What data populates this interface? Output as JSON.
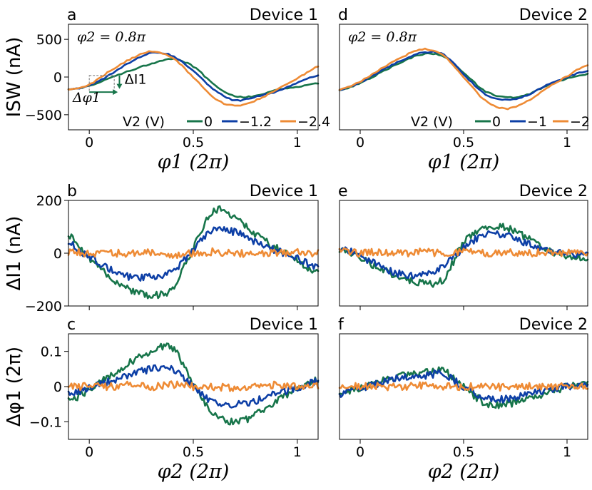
{
  "colors": {
    "green": "#17754a",
    "blue": "#0d3fa6",
    "orange": "#ee8b35"
  },
  "chart_data": [
    {
      "id": "a",
      "panel_letter": "a",
      "device_label": "Device 1",
      "type": "line",
      "xlim": [
        -0.1,
        1.1
      ],
      "ylim": [
        -700,
        700
      ],
      "xticks": [
        0,
        0.5,
        1
      ],
      "xtick_labels": [
        "0",
        "0.5",
        "1"
      ],
      "yticks": [
        500,
        0,
        -500
      ],
      "ytick_labels": [
        "500",
        "0",
        "−500"
      ],
      "xlabel": "φ1 (2π)",
      "ylabel": "ISW (nA)",
      "annotation": "φ2 = 0.8π",
      "marker_labels": {
        "dphi": "Δφ1",
        "dI": "ΔI1"
      },
      "legend_title": "V2 (V)",
      "series": [
        {
          "name": "0",
          "color": "green",
          "x": [
            -0.1,
            0,
            0.1,
            0.2,
            0.3,
            0.4,
            0.5,
            0.6,
            0.7,
            0.8,
            0.9,
            1.0,
            1.1
          ],
          "y": [
            -160,
            -120,
            -10,
            90,
            180,
            240,
            140,
            -100,
            -250,
            -250,
            -170,
            -130,
            -80
          ]
        },
        {
          "name": "−1.2",
          "color": "blue",
          "x": [
            -0.1,
            0,
            0.1,
            0.2,
            0.3,
            0.4,
            0.5,
            0.6,
            0.7,
            0.8,
            0.9,
            1.0,
            1.1
          ],
          "y": [
            -170,
            -110,
            30,
            200,
            320,
            280,
            80,
            -170,
            -310,
            -260,
            -190,
            -80,
            20
          ]
        },
        {
          "name": "−2.4",
          "color": "orange",
          "x": [
            -0.1,
            0,
            0.1,
            0.2,
            0.3,
            0.4,
            0.5,
            0.6,
            0.7,
            0.8,
            0.9,
            1.0,
            1.1
          ],
          "y": [
            -170,
            -100,
            80,
            240,
            340,
            250,
            0,
            -280,
            -380,
            -310,
            -170,
            -20,
            140
          ]
        }
      ]
    },
    {
      "id": "d",
      "panel_letter": "d",
      "device_label": "Device 2",
      "type": "line",
      "xlim": [
        -0.1,
        1.1
      ],
      "ylim": [
        -700,
        700
      ],
      "xticks": [
        0,
        0.5,
        1
      ],
      "xtick_labels": [
        "0",
        "0.5",
        "1"
      ],
      "yticks": [],
      "ytick_labels": [],
      "xlabel": "φ1 (2π)",
      "ylabel": "",
      "annotation": "φ2 = 0.8π",
      "legend_title": "V2 (V)",
      "series": [
        {
          "name": "0",
          "color": "green",
          "x": [
            -0.1,
            0,
            0.1,
            0.2,
            0.3,
            0.4,
            0.5,
            0.6,
            0.7,
            0.8,
            0.9,
            1.0,
            1.1
          ],
          "y": [
            -180,
            -80,
            60,
            200,
            300,
            280,
            60,
            -180,
            -270,
            -240,
            -120,
            -20,
            40
          ]
        },
        {
          "name": "−1",
          "color": "blue",
          "x": [
            -0.1,
            0,
            0.1,
            0.2,
            0.3,
            0.4,
            0.5,
            0.6,
            0.7,
            0.8,
            0.9,
            1.0,
            1.1
          ],
          "y": [
            -170,
            -70,
            80,
            220,
            320,
            300,
            40,
            -220,
            -300,
            -250,
            -110,
            0,
            80
          ]
        },
        {
          "name": "−2",
          "color": "orange",
          "x": [
            -0.1,
            0,
            0.1,
            0.2,
            0.3,
            0.4,
            0.5,
            0.6,
            0.7,
            0.8,
            0.9,
            1.0,
            1.1
          ],
          "y": [
            -170,
            -60,
            110,
            260,
            370,
            290,
            0,
            -300,
            -420,
            -330,
            -150,
            10,
            160
          ]
        }
      ]
    },
    {
      "id": "b",
      "panel_letter": "b",
      "device_label": "Device 1",
      "type": "line",
      "xlim": [
        -0.1,
        1.1
      ],
      "ylim": [
        -200,
        200
      ],
      "xticks": [
        0,
        0.5,
        1
      ],
      "xtick_labels": [],
      "yticks": [
        200,
        0,
        -200
      ],
      "ytick_labels": [
        "200",
        "0",
        "−200"
      ],
      "xlabel": "",
      "ylabel": "ΔI1 (nA)",
      "series": [
        {
          "name": "0",
          "color": "green",
          "x": [
            -0.1,
            0,
            0.1,
            0.2,
            0.3,
            0.4,
            0.5,
            0.6,
            0.7,
            0.8,
            0.9,
            1.0,
            1.1
          ],
          "y": [
            70,
            -20,
            -90,
            -140,
            -160,
            -130,
            20,
            160,
            130,
            70,
            20,
            -30,
            -70
          ]
        },
        {
          "name": "−1.2",
          "color": "blue",
          "x": [
            -0.1,
            0,
            0.1,
            0.2,
            0.3,
            0.4,
            0.5,
            0.6,
            0.7,
            0.8,
            0.9,
            1.0,
            1.1
          ],
          "y": [
            40,
            -15,
            -60,
            -90,
            -90,
            -70,
            15,
            90,
            80,
            40,
            10,
            -20,
            -55
          ]
        },
        {
          "name": "−2.4",
          "color": "orange",
          "x": [
            -0.1,
            0,
            0.1,
            0.2,
            0.3,
            0.4,
            0.5,
            0.6,
            0.7,
            0.8,
            0.9,
            1.0,
            1.1
          ],
          "y": [
            5,
            0,
            0,
            0,
            5,
            -5,
            0,
            5,
            0,
            0,
            0,
            5,
            0
          ]
        }
      ]
    },
    {
      "id": "e",
      "panel_letter": "e",
      "device_label": "Device 2",
      "type": "line",
      "xlim": [
        -0.1,
        1.1
      ],
      "ylim": [
        -200,
        200
      ],
      "xticks": [
        0,
        0.5,
        1
      ],
      "xtick_labels": [],
      "yticks": [],
      "ytick_labels": [],
      "xlabel": "",
      "ylabel": "",
      "series": [
        {
          "name": "0",
          "color": "green",
          "x": [
            -0.1,
            0,
            0.1,
            0.2,
            0.3,
            0.4,
            0.5,
            0.6,
            0.7,
            0.8,
            0.9,
            1.0,
            1.1
          ],
          "y": [
            10,
            -20,
            -60,
            -90,
            -110,
            -100,
            40,
            90,
            100,
            60,
            10,
            -10,
            -20
          ]
        },
        {
          "name": "−1",
          "color": "blue",
          "x": [
            -0.1,
            0,
            0.1,
            0.2,
            0.3,
            0.4,
            0.5,
            0.6,
            0.7,
            0.8,
            0.9,
            1.0,
            1.1
          ],
          "y": [
            20,
            -10,
            -50,
            -80,
            -80,
            -50,
            20,
            70,
            70,
            40,
            10,
            0,
            -10
          ]
        },
        {
          "name": "−2",
          "color": "orange",
          "x": [
            -0.1,
            0,
            0.1,
            0.2,
            0.3,
            0.4,
            0.5,
            0.6,
            0.7,
            0.8,
            0.9,
            1.0,
            1.1
          ],
          "y": [
            10,
            0,
            5,
            0,
            5,
            0,
            5,
            0,
            5,
            0,
            5,
            0,
            5
          ]
        }
      ]
    },
    {
      "id": "c",
      "panel_letter": "c",
      "device_label": "Device 1",
      "type": "line",
      "xlim": [
        -0.1,
        1.1
      ],
      "ylim": [
        -0.15,
        0.15
      ],
      "xticks": [
        0,
        0.5,
        1
      ],
      "xtick_labels": [
        "0",
        "0.5",
        "1"
      ],
      "yticks": [
        0.1,
        0,
        -0.1
      ],
      "ytick_labels": [
        "0.1",
        "0",
        "−0.1"
      ],
      "xlabel": "φ2 (2π)",
      "ylabel": "Δφ1 (2π)",
      "series": [
        {
          "name": "0",
          "color": "green",
          "x": [
            -0.1,
            0,
            0.1,
            0.2,
            0.3,
            0.4,
            0.5,
            0.6,
            0.7,
            0.8,
            0.9,
            1.0,
            1.1
          ],
          "y": [
            -0.04,
            -0.01,
            0.03,
            0.07,
            0.1,
            0.11,
            0.01,
            -0.08,
            -0.1,
            -0.08,
            -0.04,
            -0.01,
            0.02
          ]
        },
        {
          "name": "−1.2",
          "color": "blue",
          "x": [
            -0.1,
            0,
            0.1,
            0.2,
            0.3,
            0.4,
            0.5,
            0.6,
            0.7,
            0.8,
            0.9,
            1.0,
            1.1
          ],
          "y": [
            -0.02,
            -0.005,
            0.015,
            0.035,
            0.05,
            0.05,
            0.0,
            -0.045,
            -0.05,
            -0.04,
            -0.02,
            -0.005,
            0.015
          ]
        },
        {
          "name": "−2.4",
          "color": "orange",
          "x": [
            -0.1,
            0,
            0.1,
            0.2,
            0.3,
            0.4,
            0.5,
            0.6,
            0.7,
            0.8,
            0.9,
            1.0,
            1.1
          ],
          "y": [
            0,
            0,
            0,
            0.005,
            0,
            0.005,
            0,
            0,
            -0.005,
            0,
            0.005,
            0,
            0
          ]
        }
      ]
    },
    {
      "id": "f",
      "panel_letter": "f",
      "device_label": "Device 2",
      "type": "line",
      "xlim": [
        -0.1,
        1.1
      ],
      "ylim": [
        -0.15,
        0.15
      ],
      "xticks": [
        0,
        0.5,
        1
      ],
      "xtick_labels": [
        "0",
        "0.5",
        "1"
      ],
      "yticks": [],
      "ytick_labels": [],
      "xlabel": "φ2 (2π)",
      "ylabel": "",
      "series": [
        {
          "name": "0",
          "color": "green",
          "x": [
            -0.1,
            0,
            0.1,
            0.2,
            0.3,
            0.4,
            0.5,
            0.6,
            0.7,
            0.8,
            0.9,
            1.0,
            1.1
          ],
          "y": [
            -0.02,
            -0.005,
            0.015,
            0.03,
            0.04,
            0.045,
            0.0,
            -0.045,
            -0.05,
            -0.04,
            -0.02,
            0.0,
            0.01
          ]
        },
        {
          "name": "−1",
          "color": "blue",
          "x": [
            -0.1,
            0,
            0.1,
            0.2,
            0.3,
            0.4,
            0.5,
            0.6,
            0.7,
            0.8,
            0.9,
            1.0,
            1.1
          ],
          "y": [
            -0.02,
            -0.005,
            0.01,
            0.025,
            0.03,
            0.035,
            0.0,
            -0.03,
            -0.035,
            -0.025,
            -0.01,
            0.0,
            0.01
          ]
        },
        {
          "name": "−2",
          "color": "orange",
          "x": [
            -0.1,
            0,
            0.1,
            0.2,
            0.3,
            0.4,
            0.5,
            0.6,
            0.7,
            0.8,
            0.9,
            1.0,
            1.1
          ],
          "y": [
            0,
            0,
            0,
            0,
            0.002,
            0,
            0,
            0,
            -0.002,
            0,
            0,
            0,
            0
          ]
        }
      ]
    }
  ]
}
